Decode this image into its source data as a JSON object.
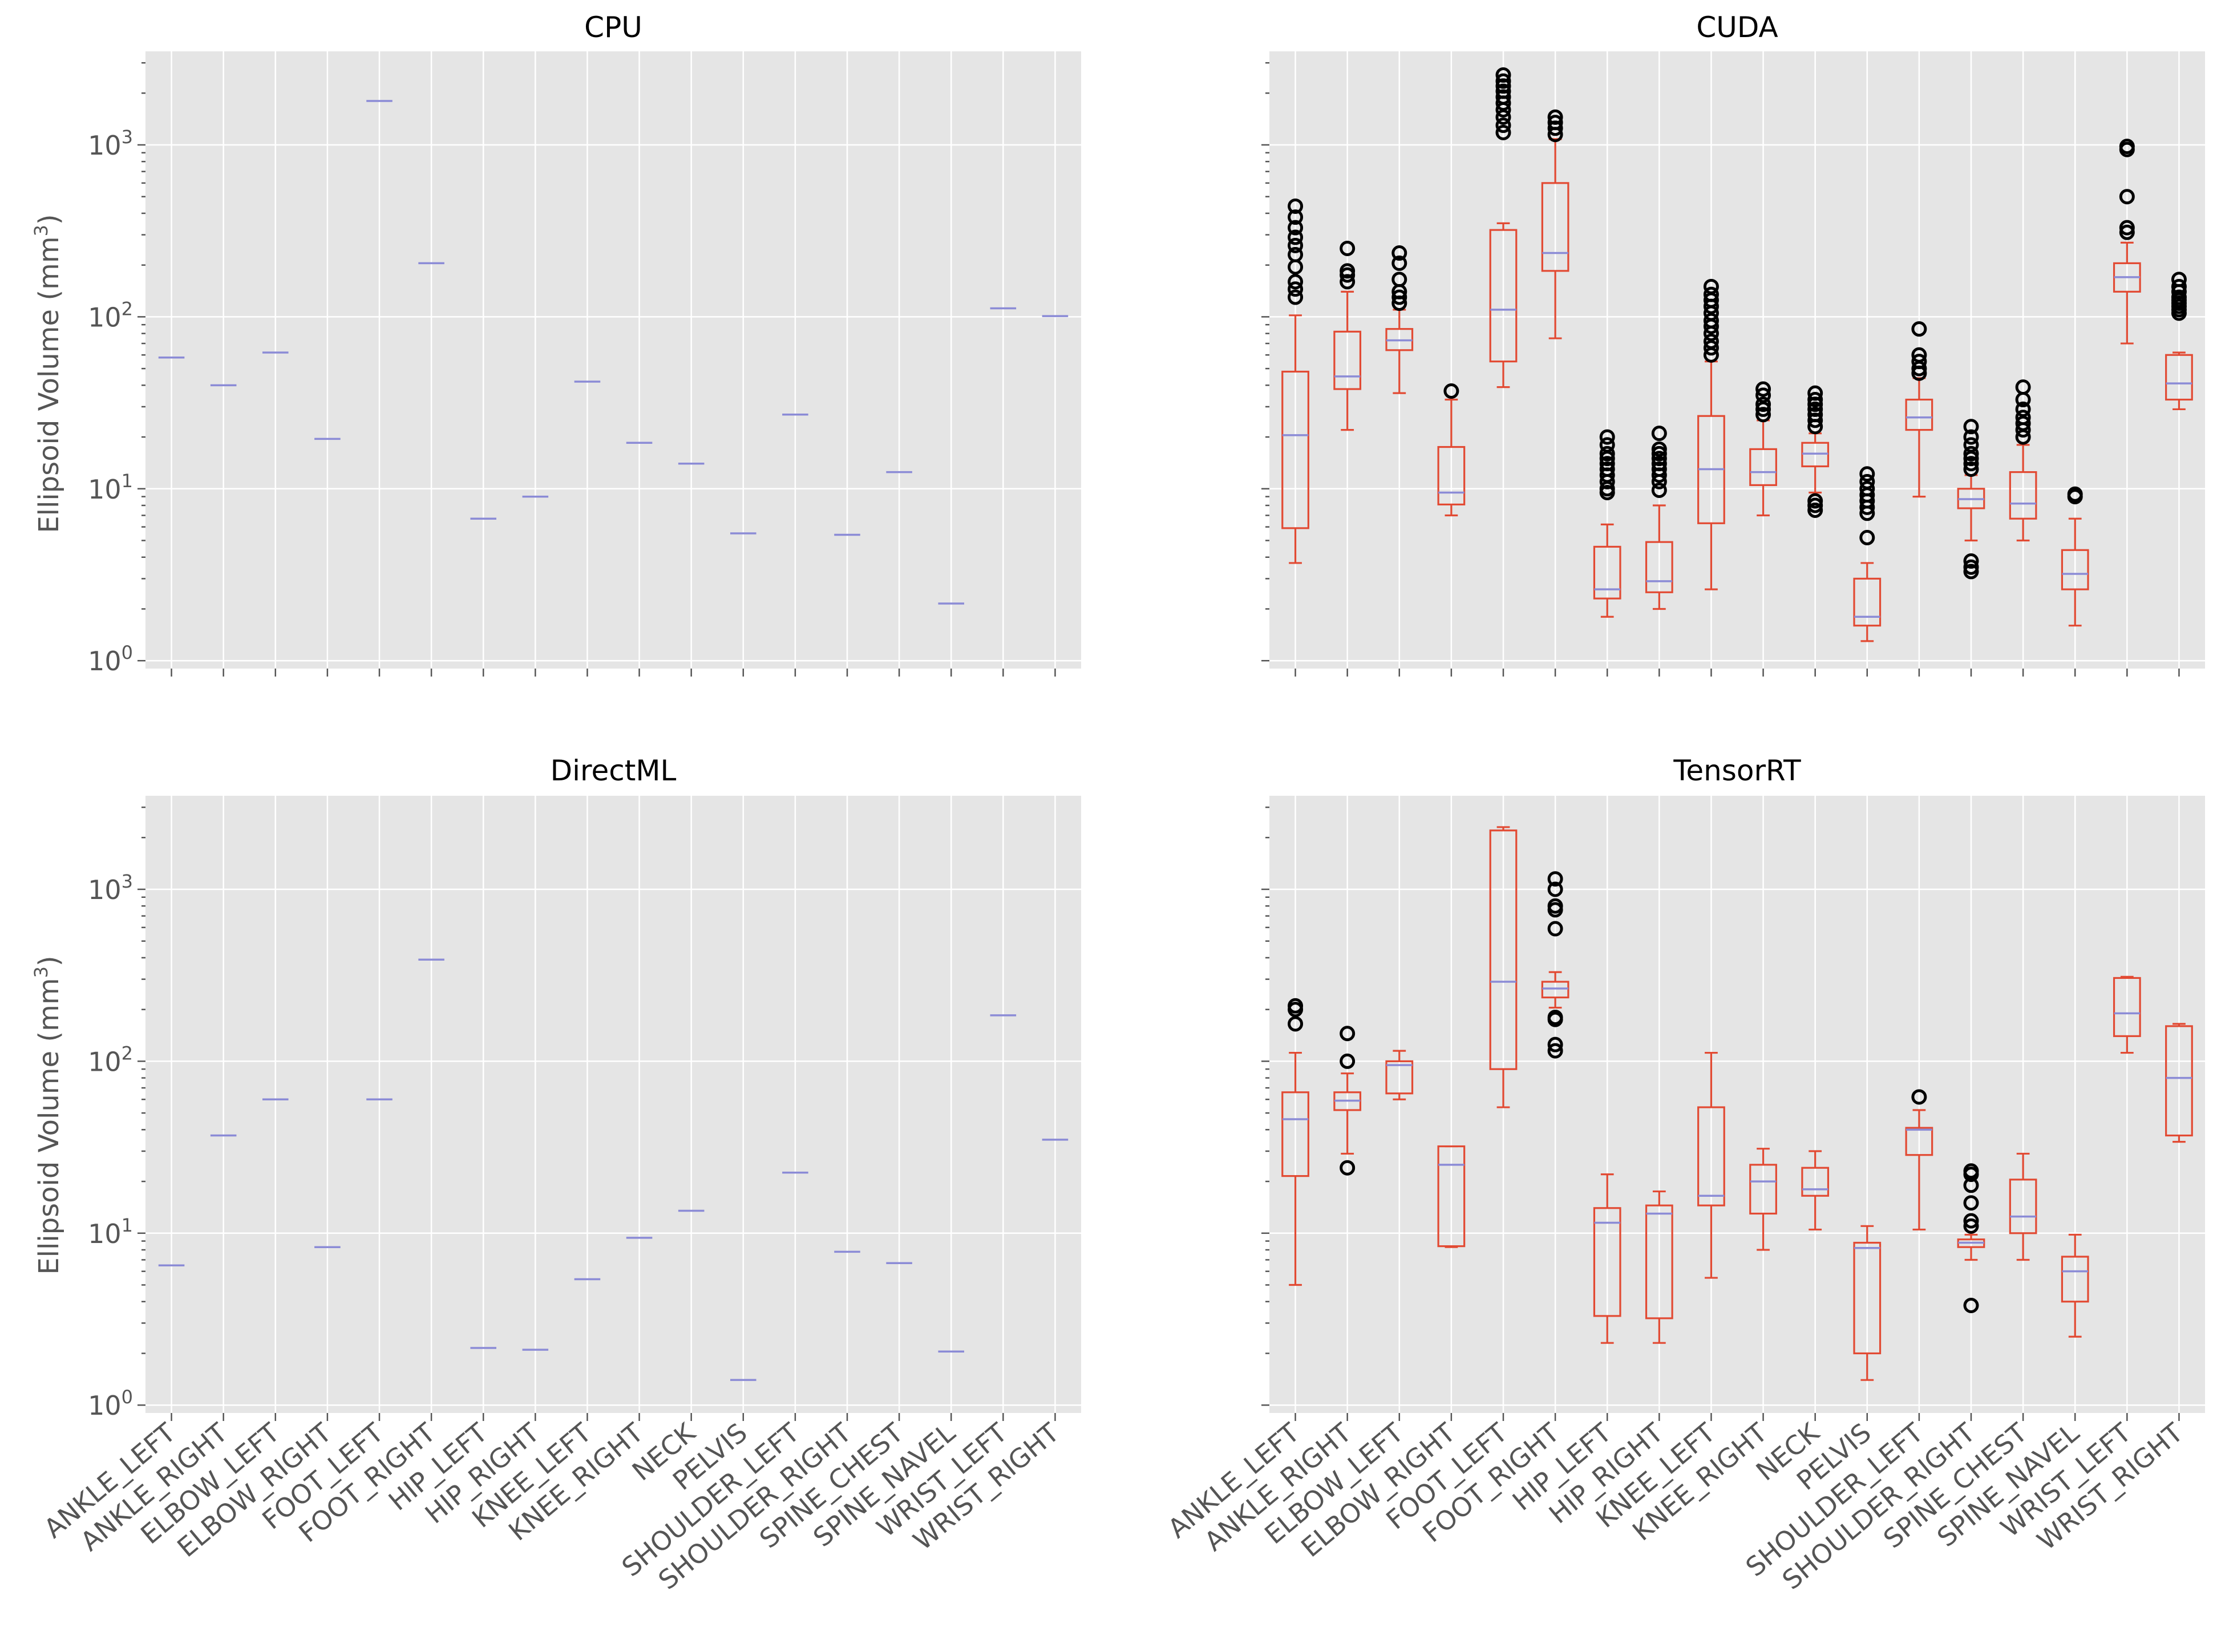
{
  "chart_data": {
    "type": "box",
    "yscale": "log",
    "ylim": [
      0.9,
      3500
    ],
    "ytick_labels": [
      "10^0",
      "10^1",
      "10^2",
      "10^3"
    ],
    "ylabel": "Ellipsoid Volume (mm^3)",
    "categories": [
      "ANKLE_LEFT",
      "ANKLE_RIGHT",
      "ELBOW_LEFT",
      "ELBOW_RIGHT",
      "FOOT_LEFT",
      "FOOT_RIGHT",
      "HIP_LEFT",
      "HIP_RIGHT",
      "KNEE_LEFT",
      "KNEE_RIGHT",
      "NECK",
      "PELVIS",
      "SHOULDER_LEFT",
      "SHOULDER_RIGHT",
      "SPINE_CHEST",
      "SPINE_NAVEL",
      "WRIST_LEFT",
      "WRIST_RIGHT"
    ],
    "grid": true,
    "panels": [
      {
        "title": "CPU",
        "values": [
          58,
          40,
          62,
          19.5,
          1800,
          205,
          6.7,
          9.0,
          42,
          18.5,
          14,
          5.5,
          27,
          5.4,
          12.5,
          2.15,
          112,
          101
        ]
      },
      {
        "title": "CUDA",
        "boxes": [
          {
            "whislo": 3.7,
            "q1": 5.9,
            "med": 20.5,
            "q3": 48,
            "whishi": 102,
            "fliers": [
              130,
              145,
              160,
              195,
              230,
              260,
              290,
              330,
              380,
              440
            ]
          },
          {
            "whislo": 22,
            "q1": 38,
            "med": 45,
            "q3": 82,
            "whishi": 140,
            "fliers": [
              160,
              175,
              185,
              250
            ]
          },
          {
            "whislo": 36,
            "q1": 64,
            "med": 73,
            "q3": 85,
            "whishi": 110,
            "fliers": [
              120,
              130,
              140,
              165,
              205,
              235
            ]
          },
          {
            "whislo": 7.0,
            "q1": 8.1,
            "med": 9.5,
            "q3": 17.5,
            "whishi": 33,
            "fliers": [
              37
            ]
          },
          {
            "whislo": 39,
            "q1": 55,
            "med": 110,
            "q3": 320,
            "whishi": 350,
            "fliers": [
              1180,
              1300,
              1450,
              1600,
              1750,
              1900,
              2050,
              2200,
              2350,
              2550
            ]
          },
          {
            "whislo": 75,
            "q1": 185,
            "med": 235,
            "q3": 600,
            "whishi": 1080,
            "fliers": [
              1150,
              1250,
              1350,
              1450
            ]
          },
          {
            "whislo": 1.8,
            "q1": 2.3,
            "med": 2.6,
            "q3": 4.6,
            "whishi": 6.2,
            "fliers": [
              9.5,
              10,
              11,
              12,
              13,
              14,
              15,
              16,
              18,
              20
            ]
          },
          {
            "whislo": 2.0,
            "q1": 2.5,
            "med": 2.9,
            "q3": 4.9,
            "whishi": 8.0,
            "fliers": [
              9.8,
              11,
              12,
              13,
              14,
              15,
              16,
              17,
              21
            ]
          },
          {
            "whislo": 2.6,
            "q1": 6.3,
            "med": 13,
            "q3": 26.5,
            "whishi": 55,
            "fliers": [
              60,
              66,
              72,
              80,
              88,
              95,
              105,
              115,
              125,
              135,
              150
            ]
          },
          {
            "whislo": 7.0,
            "q1": 10.5,
            "med": 12.5,
            "q3": 17,
            "whishi": 25,
            "fliers": [
              27,
              29,
              31,
              35,
              38
            ]
          },
          {
            "whislo": 9.5,
            "q1": 13.5,
            "med": 16,
            "q3": 18.5,
            "whishi": 21,
            "fliers": [
              7.5,
              8.0,
              8.5,
              23,
              25,
              27,
              29,
              31,
              33,
              36
            ]
          },
          {
            "whislo": 1.3,
            "q1": 1.6,
            "med": 1.8,
            "q3": 3.0,
            "whishi": 3.7,
            "fliers": [
              5.2,
              7.2,
              7.8,
              8.5,
              9.2,
              10,
              11,
              12.2
            ]
          },
          {
            "whislo": 9.0,
            "q1": 22,
            "med": 26,
            "q3": 33,
            "whishi": 44,
            "fliers": [
              47,
              50,
              55,
              60,
              85
            ]
          },
          {
            "whislo": 5.0,
            "q1": 7.7,
            "med": 8.7,
            "q3": 10,
            "whishi": 12,
            "fliers": [
              3.3,
              3.5,
              3.8,
              13,
              14,
              15,
              16,
              18,
              20,
              23
            ]
          },
          {
            "whislo": 5.0,
            "q1": 6.7,
            "med": 8.2,
            "q3": 12.5,
            "whishi": 18,
            "fliers": [
              20,
              22,
              24,
              26,
              29,
              33,
              39
            ]
          },
          {
            "whislo": 1.6,
            "q1": 2.6,
            "med": 3.2,
            "q3": 4.4,
            "whishi": 6.7,
            "fliers": [
              9.0,
              9.3
            ]
          },
          {
            "whislo": 70,
            "q1": 140,
            "med": 170,
            "q3": 205,
            "whishi": 270,
            "fliers": [
              310,
              330,
              500,
              940,
              980
            ]
          },
          {
            "whislo": 29,
            "q1": 33,
            "med": 41,
            "q3": 60,
            "whishi": 62,
            "fliers": [
              105,
              110,
              115,
              120,
              125,
              130,
              140,
              150,
              165
            ]
          }
        ]
      },
      {
        "title": "DirectML",
        "values": [
          6.5,
          37,
          60,
          8.3,
          60,
          390,
          2.15,
          2.1,
          5.4,
          9.4,
          13.5,
          1.4,
          22.5,
          7.8,
          6.7,
          2.05,
          185,
          35
        ]
      },
      {
        "title": "TensorRT",
        "boxes": [
          {
            "whislo": 5.0,
            "q1": 21.5,
            "med": 46,
            "q3": 66,
            "whishi": 112,
            "fliers": [
              165,
              200,
              210
            ]
          },
          {
            "whislo": 29,
            "q1": 52,
            "med": 59,
            "q3": 66,
            "whishi": 85,
            "fliers": [
              24,
              100,
              145
            ]
          },
          {
            "whislo": 60,
            "q1": 65,
            "med": 95,
            "q3": 100,
            "whishi": 115,
            "fliers": []
          },
          {
            "whislo": 8.3,
            "q1": 8.4,
            "med": 25,
            "q3": 32,
            "whishi": 32,
            "fliers": []
          },
          {
            "whislo": 54,
            "q1": 90,
            "med": 290,
            "q3": 2200,
            "whishi": 2300,
            "fliers": []
          },
          {
            "whislo": 205,
            "q1": 235,
            "med": 265,
            "q3": 290,
            "whishi": 330,
            "fliers": [
              115,
              125,
              175,
              180,
              590,
              760,
              800,
              1000,
              1150
            ]
          },
          {
            "whislo": 2.3,
            "q1": 3.3,
            "med": 11.5,
            "q3": 14,
            "whishi": 22,
            "fliers": []
          },
          {
            "whislo": 2.3,
            "q1": 3.2,
            "med": 13,
            "q3": 14.5,
            "whishi": 17.5,
            "fliers": []
          },
          {
            "whislo": 5.5,
            "q1": 14.5,
            "med": 16.5,
            "q3": 54,
            "whishi": 112,
            "fliers": []
          },
          {
            "whislo": 8.0,
            "q1": 13,
            "med": 20,
            "q3": 25,
            "whishi": 31,
            "fliers": []
          },
          {
            "whislo": 10.5,
            "q1": 16.5,
            "med": 18,
            "q3": 24,
            "whishi": 30,
            "fliers": []
          },
          {
            "whislo": 1.4,
            "q1": 2.0,
            "med": 8.2,
            "q3": 8.8,
            "whishi": 11,
            "fliers": []
          },
          {
            "whislo": 10.5,
            "q1": 28.5,
            "med": 40,
            "q3": 41,
            "whishi": 52,
            "fliers": [
              62
            ]
          },
          {
            "whislo": 7.0,
            "q1": 8.3,
            "med": 8.8,
            "q3": 9.2,
            "whishi": 9.8,
            "fliers": [
              3.8,
              11,
              11.8,
              15,
              19,
              22,
              23
            ]
          },
          {
            "whislo": 7.0,
            "q1": 10,
            "med": 12.5,
            "q3": 20.5,
            "whishi": 29,
            "fliers": []
          },
          {
            "whislo": 2.5,
            "q1": 4.0,
            "med": 6.0,
            "q3": 7.3,
            "whishi": 9.8,
            "fliers": []
          },
          {
            "whislo": 112,
            "q1": 140,
            "med": 190,
            "q3": 305,
            "whishi": 310,
            "fliers": []
          },
          {
            "whislo": 34,
            "q1": 37,
            "med": 80,
            "q3": 160,
            "whishi": 165,
            "fliers": []
          }
        ]
      }
    ]
  }
}
